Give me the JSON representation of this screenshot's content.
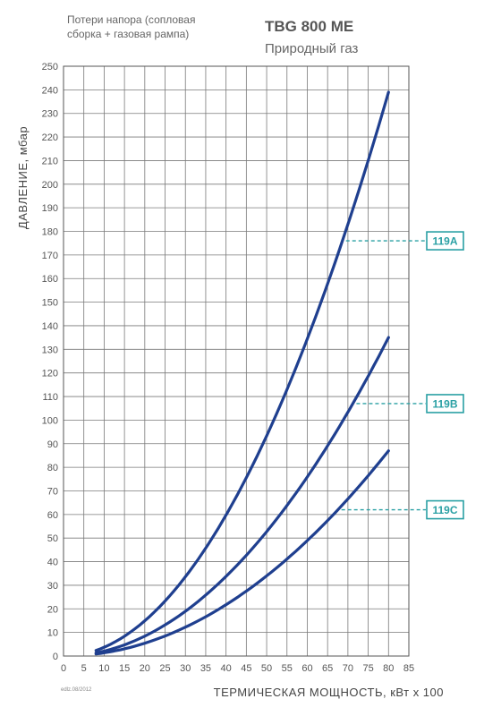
{
  "header": {
    "subtitle_line1": "Потери напора (сопловая",
    "subtitle_line2": "сборка + газовая рампа)",
    "title": "TBG 800 ME",
    "fuel": "Природный газ"
  },
  "footer": {
    "edition": "edlz.08/2012"
  },
  "colors": {
    "curve": "#1f3f8f",
    "grid": "#7a7a7a",
    "accent": "#2aa0a4"
  },
  "chart_data": {
    "type": "line",
    "xlabel": "ТЕРМИЧЕСКАЯ МОЩНОСТЬ, кВт x 100",
    "ylabel": "ДАВЛЕНИЕ, мбар",
    "xlim": [
      0,
      85
    ],
    "ylim": [
      0,
      250
    ],
    "x_ticks": [
      0,
      5,
      10,
      15,
      20,
      25,
      30,
      35,
      40,
      45,
      50,
      55,
      60,
      65,
      70,
      75,
      80,
      85
    ],
    "y_ticks": [
      0,
      10,
      20,
      30,
      40,
      50,
      60,
      70,
      80,
      90,
      100,
      110,
      120,
      130,
      140,
      150,
      160,
      170,
      180,
      190,
      200,
      210,
      220,
      230,
      240,
      250
    ],
    "grid": true,
    "series": [
      {
        "name": "119A",
        "x": [
          8,
          80
        ],
        "y": [
          3.5,
          239
        ],
        "label_at_y": 176
      },
      {
        "name": "119B",
        "x": [
          8,
          80
        ],
        "y": [
          2.5,
          135
        ],
        "label_at_y": 107
      },
      {
        "name": "119C",
        "x": [
          8,
          80
        ],
        "y": [
          1.5,
          87
        ],
        "label_at_y": 62
      }
    ]
  }
}
